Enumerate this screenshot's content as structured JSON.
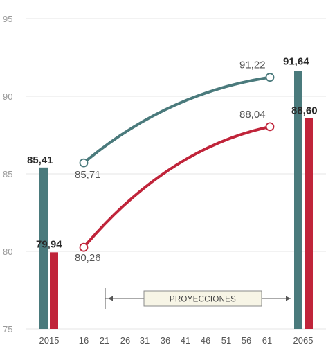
{
  "chart_data": {
    "type": "bar+line",
    "ylim": [
      75,
      95
    ],
    "yticks": [
      75,
      80,
      85,
      90,
      95
    ],
    "x_tick_labels": [
      "2015",
      "16",
      "21",
      "26",
      "31",
      "36",
      "41",
      "46",
      "51",
      "56",
      "61",
      "2065"
    ],
    "colors": {
      "teal": "#4a7a7c",
      "red": "#c0243a",
      "grid": "#e6e6e6"
    },
    "bars": [
      {
        "category": "2015",
        "teal_value": 85.41,
        "red_value": 79.94,
        "teal_label": "85,41",
        "red_label": "79,94"
      },
      {
        "category": "2065",
        "teal_value": 91.64,
        "red_value": 88.6,
        "teal_label": "91,64",
        "red_label": "88,60"
      }
    ],
    "series": [
      {
        "color": "teal",
        "x": [
          "2016",
          "2061"
        ],
        "values": [
          85.71,
          91.22
        ],
        "labels": [
          "85,71",
          "91,22"
        ]
      },
      {
        "color": "red",
        "x": [
          "2016",
          "2061"
        ],
        "values": [
          80.26,
          88.04
        ],
        "labels": [
          "80,26",
          "88,04"
        ]
      }
    ],
    "annotation": {
      "text": "PROYECCIONES",
      "from": "21",
      "to": "61"
    }
  }
}
